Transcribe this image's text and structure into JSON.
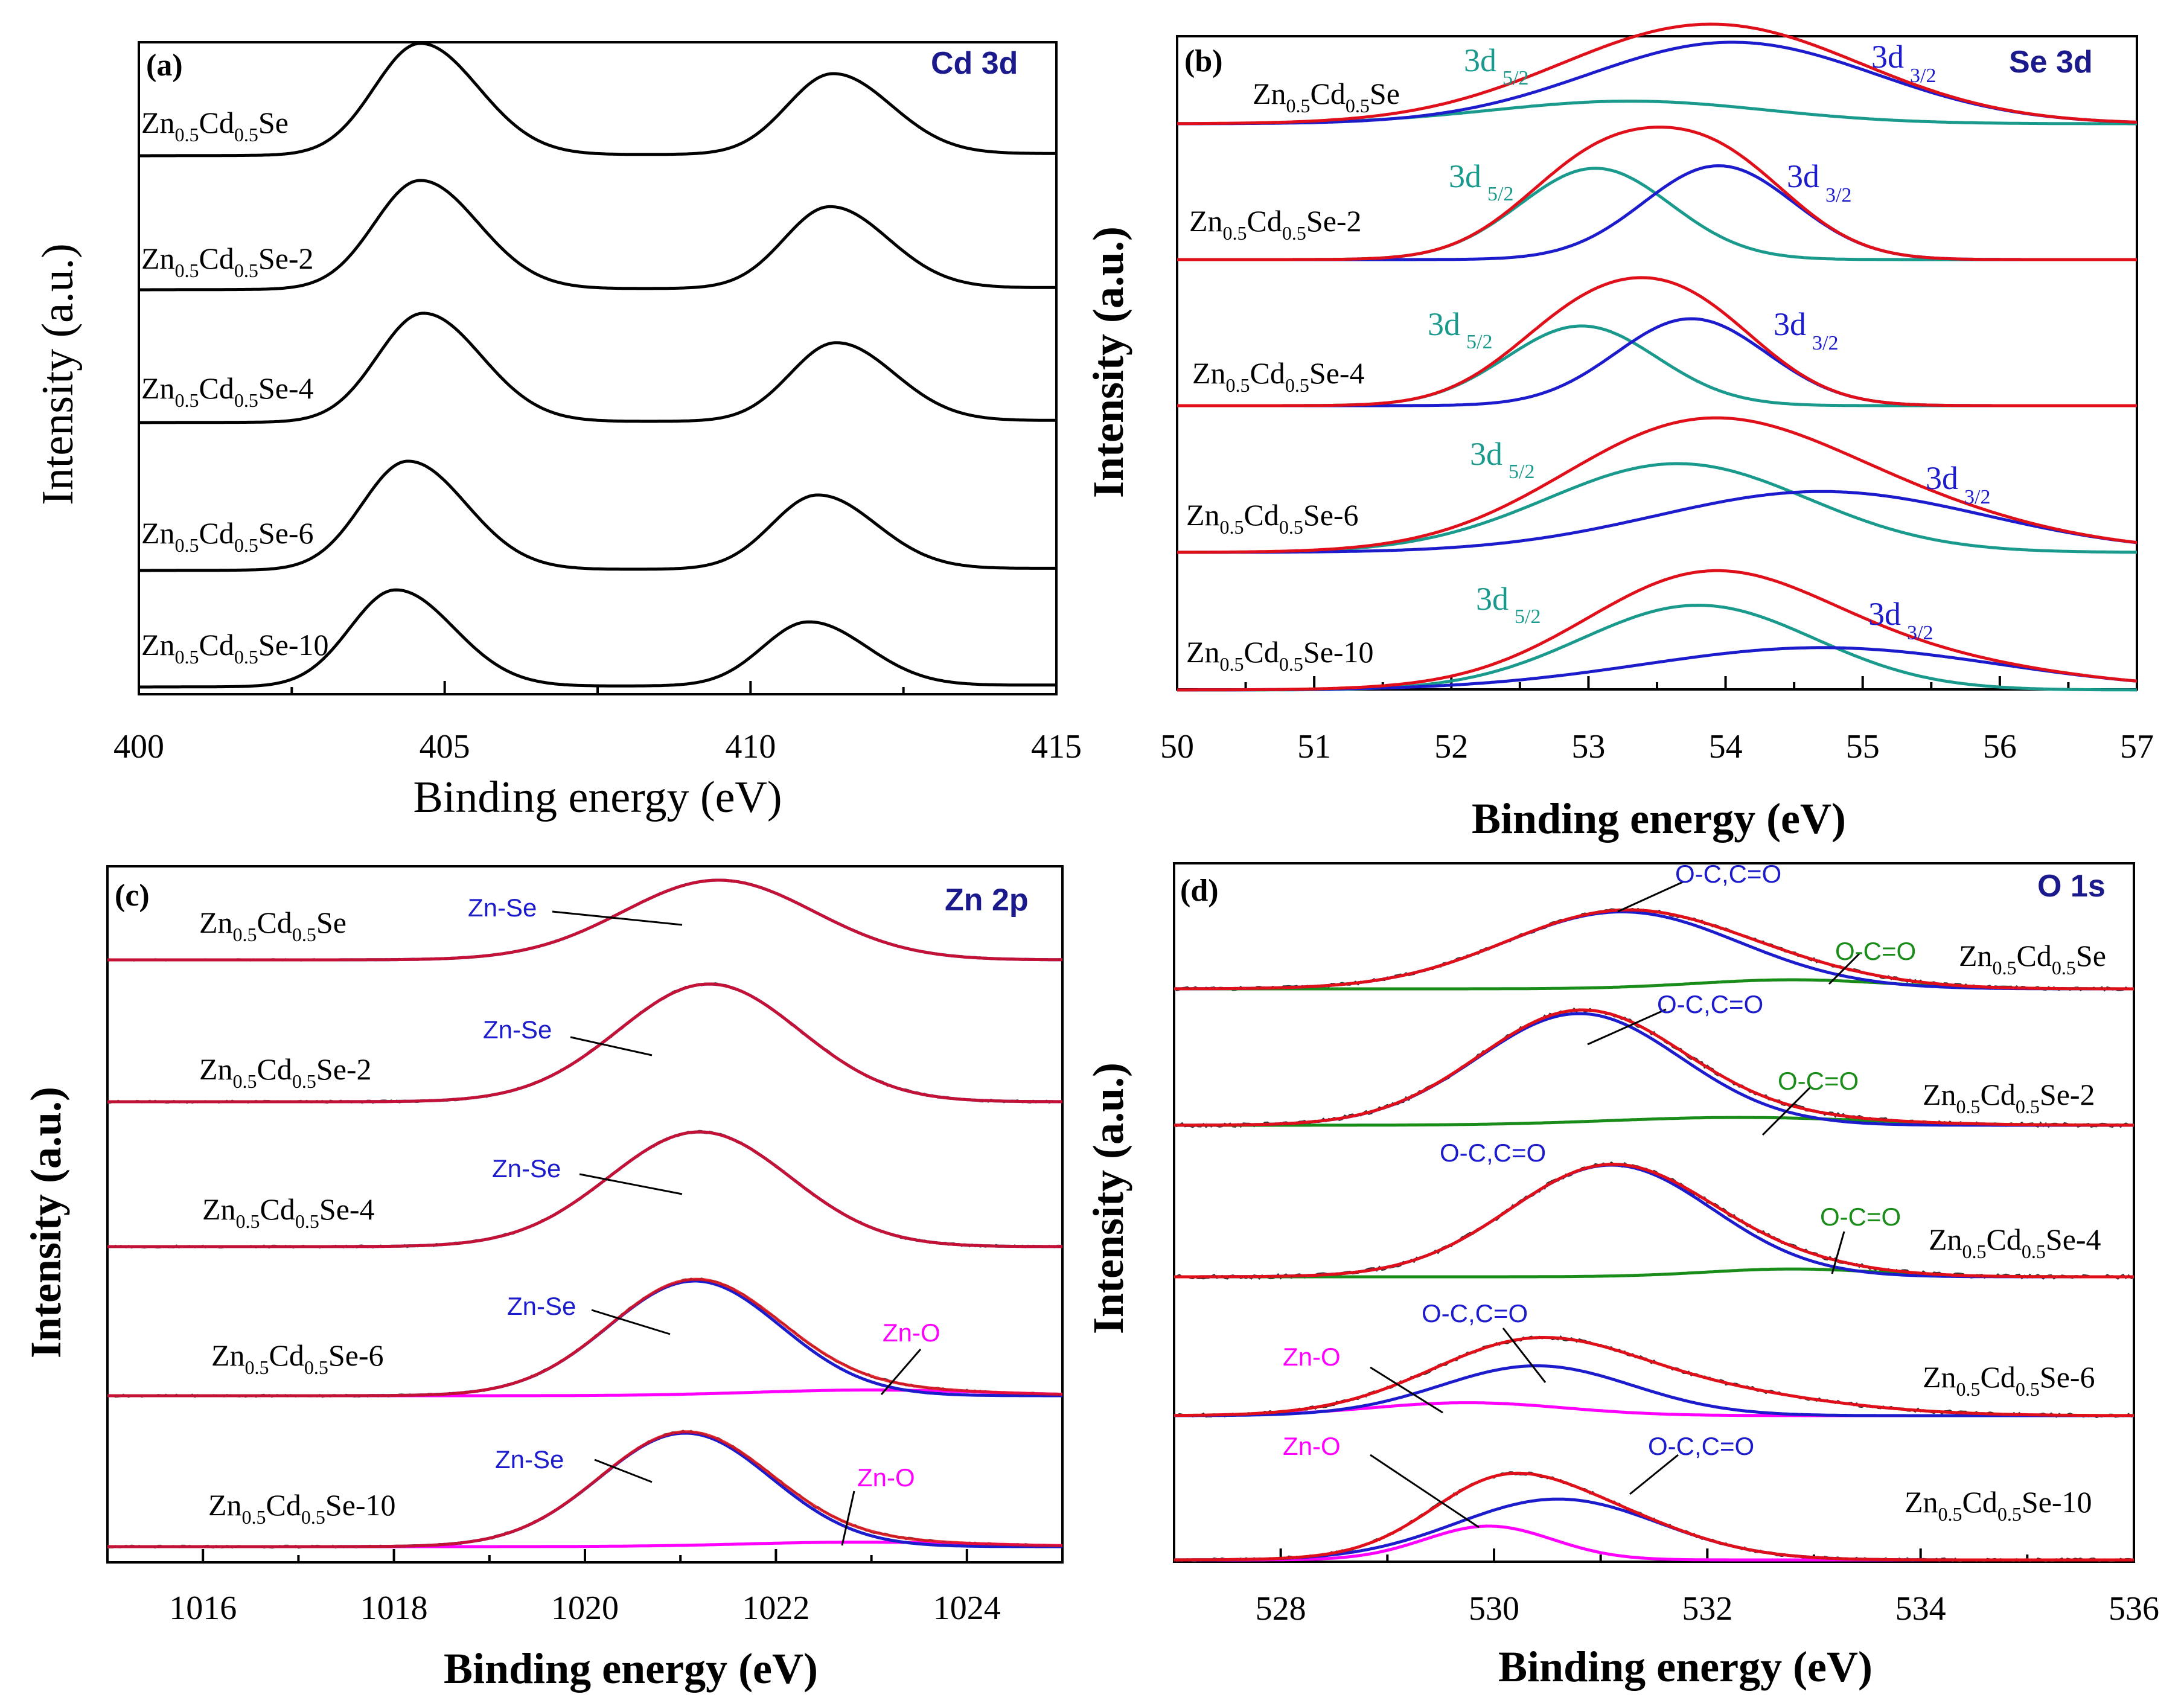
{
  "chart_data": [
    {
      "panel": "(a)",
      "element": "Cd 3d",
      "type": "line",
      "xlabel": "Binding energy (eV)",
      "ylabel": "Intensity (a.u.)",
      "xlim": [
        400,
        415
      ],
      "xticks": [
        "400",
        "405",
        "410",
        "415"
      ],
      "x_reversed": false,
      "colors": {
        "data": "#000000"
      },
      "samples": [
        {
          "name": "Zn0.5Cd0.5Se",
          "label": {
            "a": "Zn",
            "s1": "0.5",
            "b": "Cd",
            "s2": "0.5",
            "c": "Se"
          },
          "peaks_eV": [
            404.6,
            411.35
          ],
          "heights": [
            1.0,
            0.72
          ]
        },
        {
          "name": "Zn0.5Cd0.5Se-2",
          "label": {
            "a": "Zn",
            "s1": "0.5",
            "b": "Cd",
            "s2": "0.5",
            "c": "Se-2"
          },
          "peaks_eV": [
            404.6,
            411.3
          ],
          "heights": [
            1.0,
            0.75
          ]
        },
        {
          "name": "Zn0.5Cd0.5Se-4",
          "label": {
            "a": "Zn",
            "s1": "0.5",
            "b": "Cd",
            "s2": "0.5",
            "c": "Se-4"
          },
          "peaks_eV": [
            404.65,
            411.4
          ],
          "heights": [
            1.0,
            0.72
          ]
        },
        {
          "name": "Zn0.5Cd0.5Se-6",
          "label": {
            "a": "Zn",
            "s1": "0.5",
            "b": "Cd",
            "s2": "0.5",
            "c": "Se-6"
          },
          "peaks_eV": [
            404.4,
            411.1
          ],
          "heights": [
            1.0,
            0.68
          ]
        },
        {
          "name": "Zn0.5Cd0.5Se-10",
          "label": {
            "a": "Zn",
            "s1": "0.5",
            "b": "Cd",
            "s2": "0.5",
            "c": "Se-10"
          },
          "peaks_eV": [
            404.2,
            410.95
          ],
          "heights": [
            1.0,
            0.66
          ]
        }
      ]
    },
    {
      "panel": "(b)",
      "element": "Se 3d",
      "type": "line",
      "xlabel": "Binding energy (eV)",
      "ylabel": "Intensity (a.u.)",
      "xlim": [
        50,
        57
      ],
      "xticks": [
        "50",
        "51",
        "52",
        "53",
        "54",
        "55",
        "56",
        "57"
      ],
      "x_reversed": false,
      "colors": {
        "envelope": "#e0101a",
        "3d5/2": "#1a9a8c",
        "3d3/2": "#1c1ccc"
      },
      "peak_labels": {
        "d52": {
          "main": "3d",
          "sub": "5/2"
        },
        "d32": {
          "main": "3d",
          "sub": "3/2"
        }
      },
      "samples": [
        {
          "name": "Zn0.5Cd0.5Se",
          "label": {
            "a": "Zn",
            "s1": "0.5",
            "b": "Cd",
            "s2": "0.5",
            "c": "Se"
          },
          "d52": {
            "center": 53.3,
            "sigma": 1.0,
            "amp": 0.25
          },
          "d32": {
            "center": 54.05,
            "sigma": 1.05,
            "amp": 0.9
          }
        },
        {
          "name": "Zn0.5Cd0.5Se-2",
          "label": {
            "a": "Zn",
            "s1": "0.5",
            "b": "Cd",
            "s2": "0.5",
            "c": "Se-2"
          },
          "d52": {
            "center": 53.05,
            "sigma": 0.55,
            "amp": 0.72
          },
          "d32": {
            "center": 53.95,
            "sigma": 0.55,
            "amp": 0.74
          }
        },
        {
          "name": "Zn0.5Cd0.5Se-4",
          "label": {
            "a": "Zn",
            "s1": "0.5",
            "b": "Cd",
            "s2": "0.5",
            "c": "Se-4"
          },
          "d52": {
            "center": 52.95,
            "sigma": 0.55,
            "amp": 0.66
          },
          "d32": {
            "center": 53.75,
            "sigma": 0.55,
            "amp": 0.72
          }
        },
        {
          "name": "Zn0.5Cd0.5Se-6",
          "label": {
            "a": "Zn",
            "s1": "0.5",
            "b": "Cd",
            "s2": "0.5",
            "c": "Se-6"
          },
          "d52": {
            "center": 53.65,
            "sigma": 0.95,
            "amp": 0.7
          },
          "d32": {
            "center": 54.7,
            "sigma": 1.2,
            "amp": 0.48
          }
        },
        {
          "name": "Zn0.5Cd0.5Se-10",
          "label": {
            "a": "Zn",
            "s1": "0.5",
            "b": "Cd",
            "s2": "0.5",
            "c": "Se-10"
          },
          "d52": {
            "center": 53.8,
            "sigma": 0.85,
            "amp": 0.72
          },
          "d32": {
            "center": 54.7,
            "sigma": 1.3,
            "amp": 0.36
          }
        }
      ]
    },
    {
      "panel": "(c)",
      "element": "Zn 2p",
      "type": "line",
      "xlabel": "Binding energy (eV)",
      "ylabel": "Intensity (a.u.)",
      "xlim": [
        1015,
        1025
      ],
      "xticks": [
        "1016",
        "1018",
        "1020",
        "1022",
        "1024"
      ],
      "x_reversed": false,
      "colors": {
        "envelope": "#e0101a",
        "Zn-Se": "#1c1ccc",
        "Zn-O": "#ff00ff",
        "raw": "#555555"
      },
      "components": [
        "Zn-Se",
        "Zn-O"
      ],
      "samples": [
        {
          "name": "Zn0.5Cd0.5Se",
          "label": {
            "a": "Zn",
            "s1": "0.5",
            "b": "Cd",
            "s2": "0.5",
            "c": "Se"
          },
          "ZnSe": {
            "center": 1021.4,
            "sigma": 1.0,
            "amp": 1.0
          }
        },
        {
          "name": "Zn0.5Cd0.5Se-2",
          "label": {
            "a": "Zn",
            "s1": "0.5",
            "b": "Cd",
            "s2": "0.5",
            "c": "Se-2"
          },
          "ZnSe": {
            "center": 1021.3,
            "sigma": 0.95,
            "amp": 1.0
          }
        },
        {
          "name": "Zn0.5Cd0.5Se-4",
          "label": {
            "a": "Zn",
            "s1": "0.5",
            "b": "Cd",
            "s2": "0.5",
            "c": "Se-4"
          },
          "ZnSe": {
            "center": 1021.2,
            "sigma": 0.95,
            "amp": 1.0
          }
        },
        {
          "name": "Zn0.5Cd0.5Se-6",
          "label": {
            "a": "Zn",
            "s1": "0.5",
            "b": "Cd",
            "s2": "0.5",
            "c": "Se-6"
          },
          "ZnSe": {
            "center": 1021.15,
            "sigma": 0.9,
            "amp": 1.0
          },
          "ZnO": {
            "center": 1023.0,
            "sigma": 1.2,
            "amp": 0.05
          }
        },
        {
          "name": "Zn0.5Cd0.5Se-10",
          "label": {
            "a": "Zn",
            "s1": "0.5",
            "b": "Cd",
            "s2": "0.5",
            "c": "Se-10"
          },
          "ZnSe": {
            "center": 1021.05,
            "sigma": 0.9,
            "amp": 1.0
          },
          "ZnO": {
            "center": 1022.9,
            "sigma": 1.2,
            "amp": 0.04
          }
        }
      ]
    },
    {
      "panel": "(d)",
      "element": "O 1s",
      "type": "line",
      "xlabel": "Binding energy (eV)",
      "ylabel": "Intensity (a.u.)",
      "xlim": [
        527,
        536
      ],
      "xticks": [
        "528",
        "530",
        "532",
        "534",
        "536"
      ],
      "x_reversed": false,
      "colors": {
        "envelope": "#e0101a",
        "O-C,C=O": "#1c1ccc",
        "O-C=O": "#1a8c1a",
        "Zn-O": "#ff00ff",
        "raw": "#333333"
      },
      "components": [
        "O-C,C=O",
        "O-C=O",
        "Zn-O"
      ],
      "samples": [
        {
          "name": "Zn0.5Cd0.5Se",
          "label": {
            "a": "Zn",
            "s1": "0.5",
            "b": "Cd",
            "s2": "0.5",
            "c": "Se"
          },
          "OC": {
            "center": 531.2,
            "sigma": 1.1,
            "amp": 0.85
          },
          "OCO": {
            "center": 532.8,
            "sigma": 0.9,
            "amp": 0.1
          }
        },
        {
          "name": "Zn0.5Cd0.5Se-2",
          "label": {
            "a": "Zn",
            "s1": "0.5",
            "b": "Cd",
            "s2": "0.5",
            "c": "Se-2"
          },
          "OC": {
            "center": 530.8,
            "sigma": 0.95,
            "amp": 1.0
          },
          "OCO": {
            "center": 532.3,
            "sigma": 1.2,
            "amp": 0.07
          }
        },
        {
          "name": "Zn0.5Cd0.5Se-4",
          "label": {
            "a": "Zn",
            "s1": "0.5",
            "b": "Cd",
            "s2": "0.5",
            "c": "Se-4"
          },
          "OC": {
            "center": 531.1,
            "sigma": 0.95,
            "amp": 1.0
          },
          "OCO": {
            "center": 532.8,
            "sigma": 0.8,
            "amp": 0.07
          }
        },
        {
          "name": "Zn0.5Cd0.5Se-6",
          "label": {
            "a": "Zn",
            "s1": "0.5",
            "b": "Cd",
            "s2": "0.5",
            "c": "Se-6"
          },
          "OC": {
            "center": 530.4,
            "sigma": 0.9,
            "amp": 0.5
          },
          "ZnO": {
            "center": 529.75,
            "sigma": 0.9,
            "amp": 0.13
          },
          "tail": {
            "center": 531.6,
            "sigma": 1.3,
            "amp": 0.28
          }
        },
        {
          "name": "Zn0.5Cd0.5Se-10",
          "label": {
            "a": "Zn",
            "s1": "0.5",
            "b": "Cd",
            "s2": "0.5",
            "c": "Se-10"
          },
          "OC": {
            "center": 530.6,
            "sigma": 0.95,
            "amp": 0.72
          },
          "ZnO": {
            "center": 529.95,
            "sigma": 0.6,
            "amp": 0.4
          }
        }
      ]
    }
  ]
}
